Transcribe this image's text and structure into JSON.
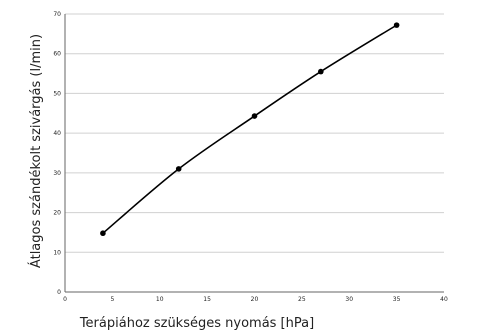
{
  "chart_data": {
    "type": "line",
    "title": "",
    "xlabel": "Terápiához szükséges nyomás [hPa]",
    "ylabel": "Átlagos szándékolt szivárgás (l/min)",
    "xlim": [
      0,
      40
    ],
    "ylim": [
      0,
      70
    ],
    "x_ticks": [
      0,
      5,
      10,
      15,
      20,
      25,
      30,
      35,
      40
    ],
    "y_ticks": [
      0,
      10,
      20,
      30,
      40,
      50,
      60,
      70
    ],
    "grid": "horizontal",
    "smooth": true,
    "series": [
      {
        "color": "#000000",
        "x": [
          4,
          12,
          20,
          27,
          35
        ],
        "y": [
          14.8,
          31,
          44.3,
          55.5,
          67.2
        ]
      }
    ]
  }
}
